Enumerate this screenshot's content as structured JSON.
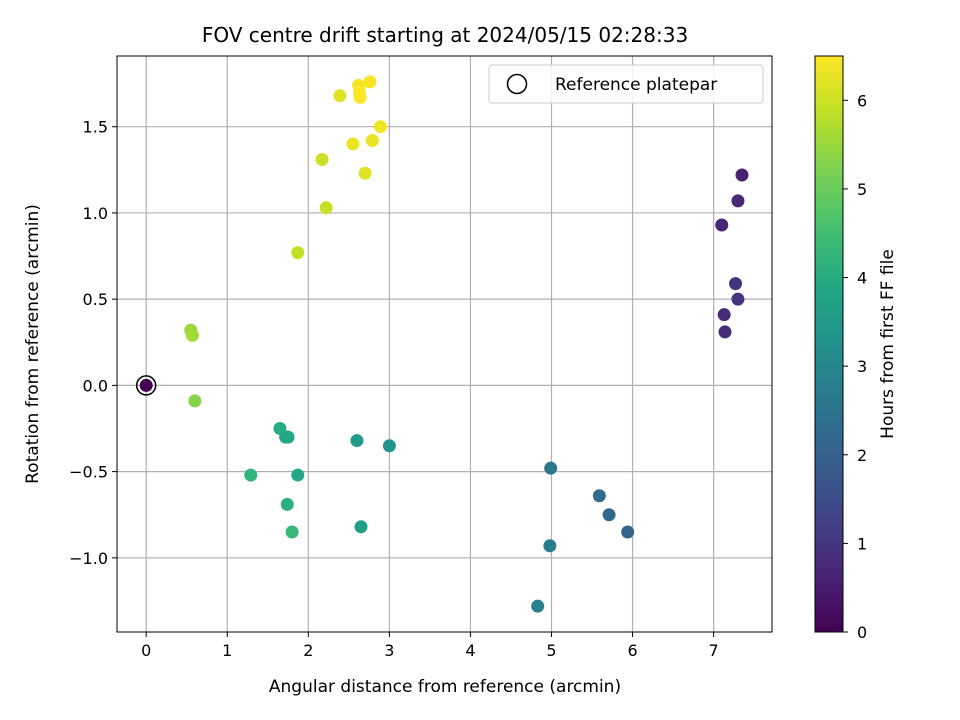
{
  "chart_data": {
    "type": "scatter",
    "title": "FOV centre drift starting at 2024/05/15 02:28:33",
    "xlabel": "Angular distance from reference (arcmin)",
    "ylabel": "Rotation from reference (arcmin)",
    "xlim": [
      -0.36,
      7.72
    ],
    "ylim": [
      -1.43,
      1.91
    ],
    "xticks": [
      0,
      1,
      2,
      3,
      4,
      5,
      6,
      7
    ],
    "yticks": [
      -1.0,
      -0.5,
      0.0,
      0.5,
      1.0,
      1.5
    ],
    "xtick_labels": [
      "0",
      "1",
      "2",
      "3",
      "4",
      "5",
      "6",
      "7"
    ],
    "ytick_labels": [
      "−1.0",
      "−0.5",
      "0.0",
      "0.5",
      "1.0",
      "1.5"
    ],
    "grid": true,
    "legend": {
      "location": "top-right",
      "entries": [
        "Reference platepar"
      ]
    },
    "reference_point": {
      "x": 0,
      "y": 0
    },
    "colorbar": {
      "label": "Hours from first FF file",
      "min": 0,
      "max": 6.5,
      "ticks": [
        0,
        1,
        2,
        3,
        4,
        5,
        6
      ],
      "colormap": "viridis"
    },
    "points": [
      {
        "x": 0.0,
        "y": 0.0,
        "c": 0.0
      },
      {
        "x": 7.35,
        "y": 1.22,
        "c": 0.6
      },
      {
        "x": 7.1,
        "y": 0.93,
        "c": 0.7
      },
      {
        "x": 7.3,
        "y": 1.07,
        "c": 0.75
      },
      {
        "x": 7.27,
        "y": 0.59,
        "c": 0.95
      },
      {
        "x": 7.3,
        "y": 0.5,
        "c": 0.95
      },
      {
        "x": 7.13,
        "y": 0.41,
        "c": 0.8
      },
      {
        "x": 7.14,
        "y": 0.31,
        "c": 0.8
      },
      {
        "x": 5.94,
        "y": -0.85,
        "c": 2.1
      },
      {
        "x": 5.71,
        "y": -0.75,
        "c": 2.2
      },
      {
        "x": 5.59,
        "y": -0.64,
        "c": 2.3
      },
      {
        "x": 4.99,
        "y": -0.48,
        "c": 2.6
      },
      {
        "x": 4.98,
        "y": -0.93,
        "c": 2.7
      },
      {
        "x": 4.83,
        "y": -1.28,
        "c": 2.8
      },
      {
        "x": 3.0,
        "y": -0.35,
        "c": 3.4
      },
      {
        "x": 2.6,
        "y": -0.32,
        "c": 3.5
      },
      {
        "x": 2.65,
        "y": -0.82,
        "c": 3.6
      },
      {
        "x": 1.87,
        "y": -0.52,
        "c": 3.9
      },
      {
        "x": 1.75,
        "y": -0.3,
        "c": 3.8
      },
      {
        "x": 1.72,
        "y": -0.3,
        "c": 3.9
      },
      {
        "x": 1.65,
        "y": -0.25,
        "c": 4.0
      },
      {
        "x": 1.29,
        "y": -0.52,
        "c": 4.2
      },
      {
        "x": 1.74,
        "y": -0.69,
        "c": 4.1
      },
      {
        "x": 1.8,
        "y": -0.85,
        "c": 4.3
      },
      {
        "x": 0.6,
        "y": -0.09,
        "c": 5.3
      },
      {
        "x": 0.55,
        "y": 0.32,
        "c": 5.5
      },
      {
        "x": 0.57,
        "y": 0.29,
        "c": 5.6
      },
      {
        "x": 1.87,
        "y": 0.77,
        "c": 5.9
      },
      {
        "x": 2.22,
        "y": 1.03,
        "c": 5.95
      },
      {
        "x": 2.17,
        "y": 1.31,
        "c": 6.0
      },
      {
        "x": 2.7,
        "y": 1.23,
        "c": 6.2
      },
      {
        "x": 2.55,
        "y": 1.4,
        "c": 6.3
      },
      {
        "x": 2.79,
        "y": 1.42,
        "c": 6.3
      },
      {
        "x": 2.89,
        "y": 1.5,
        "c": 6.35
      },
      {
        "x": 2.39,
        "y": 1.68,
        "c": 6.2
      },
      {
        "x": 2.62,
        "y": 1.74,
        "c": 6.4
      },
      {
        "x": 2.76,
        "y": 1.76,
        "c": 6.45
      },
      {
        "x": 2.63,
        "y": 1.7,
        "c": 6.5
      },
      {
        "x": 2.64,
        "y": 1.67,
        "c": 6.5
      }
    ]
  }
}
